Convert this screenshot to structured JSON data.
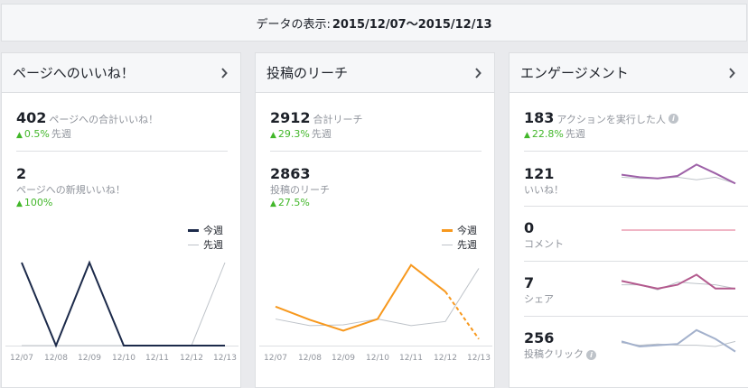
{
  "date_range": {
    "label": "データの表示: ",
    "value": "2015/12/07〜2015/12/13"
  },
  "colors": {
    "this_week_likes": "#1c2a4a",
    "this_week_reach": "#f7981d",
    "last_week": "#bec3c9",
    "up": "#42b72a"
  },
  "page_likes": {
    "title": "ページへのいいね！",
    "total_value": "402",
    "total_label": "ページへの合計いいね！",
    "total_delta": "0.5%",
    "total_delta_label": "先週",
    "new_value": "2",
    "new_label": "ページへの新規いいね！",
    "new_delta": "100%",
    "legend_this": "今週",
    "legend_last": "先週"
  },
  "post_reach": {
    "title": "投稿のリーチ",
    "total_value": "2912",
    "total_label": "合計リーチ",
    "total_delta": "29.3%",
    "total_delta_label": "先週",
    "post_value": "2863",
    "post_label": "投稿のリーチ",
    "post_delta": "27.5%",
    "legend_this": "今週",
    "legend_last": "先週"
  },
  "engagement": {
    "title": "エンゲージメント",
    "total_value": "183",
    "total_label": "アクションを実行した人",
    "total_delta": "22.8%",
    "total_delta_label": "先週",
    "rows": [
      {
        "value": "121",
        "label": "いいね！"
      },
      {
        "value": "0",
        "label": "コメント"
      },
      {
        "value": "7",
        "label": "シェア"
      },
      {
        "value": "256",
        "label": "投稿クリック"
      }
    ]
  },
  "chart_data": [
    {
      "type": "line",
      "categories": [
        "12/07",
        "12/08",
        "12/09",
        "12/10",
        "12/11",
        "12/12",
        "12/13"
      ],
      "ylim": [
        0,
        1
      ],
      "series": [
        {
          "name": "今週",
          "values": [
            1,
            0,
            1,
            0,
            0,
            0,
            0
          ]
        },
        {
          "name": "先週",
          "values": [
            0,
            0,
            0,
            0,
            0,
            0,
            1
          ]
        }
      ]
    },
    {
      "type": "line",
      "categories": [
        "12/07",
        "12/08",
        "12/09",
        "12/10",
        "12/11",
        "12/12",
        "12/13"
      ],
      "ylim": [
        0,
        1
      ],
      "series": [
        {
          "name": "今週",
          "values": [
            0.47,
            0.31,
            0.18,
            0.32,
            0.97,
            0.65,
            0.08
          ]
        },
        {
          "name": "先週",
          "values": [
            0.32,
            0.24,
            0.25,
            0.32,
            0.24,
            0.29,
            0.93
          ]
        }
      ]
    }
  ],
  "sparklines": {
    "likes": {
      "this": [
        0.55,
        0.45,
        0.4,
        0.5,
        0.95,
        0.6,
        0.2
      ],
      "last": [
        0.45,
        0.4,
        0.4,
        0.45,
        0.35,
        0.45,
        0.2
      ]
    },
    "comments": {
      "this": [
        0,
        0,
        0,
        0,
        0,
        0,
        0
      ],
      "last": [
        0,
        0,
        0,
        0,
        0,
        0,
        0
      ]
    },
    "shares": {
      "this": [
        0.7,
        0.55,
        0.4,
        0.55,
        0.95,
        0.4,
        0.4
      ],
      "last": [
        0.55,
        0.55,
        0.35,
        0.65,
        0.6,
        0.55,
        0.4
      ]
    },
    "clicks": {
      "this": [
        0.45,
        0.25,
        0.3,
        0.35,
        0.9,
        0.55,
        0.05
      ],
      "last": [
        0.4,
        0.3,
        0.35,
        0.3,
        0.3,
        0.25,
        0.45
      ]
    }
  }
}
